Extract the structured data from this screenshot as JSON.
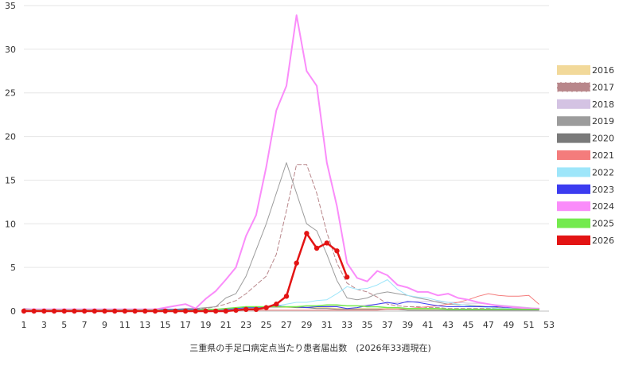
{
  "chart_data": {
    "type": "line",
    "xlabel": "三重県の手足口病定点当たり患者届出数　(2026年33週現在)",
    "ylabel": "",
    "title": "",
    "xlim": [
      1,
      53
    ],
    "ylim": [
      0,
      35
    ],
    "x_ticks": [
      1,
      3,
      5,
      7,
      9,
      11,
      13,
      15,
      17,
      19,
      21,
      23,
      25,
      27,
      29,
      31,
      33,
      35,
      37,
      39,
      41,
      43,
      45,
      47,
      49,
      51,
      53
    ],
    "y_ticks": [
      0,
      5,
      10,
      15,
      20,
      25,
      30,
      35
    ],
    "grid": true,
    "legend_position": "right",
    "series": [
      {
        "name": "2016",
        "color": "#f2d99a",
        "style": "solid",
        "width": 1,
        "values": [
          0.1,
          0.1,
          0.1,
          0.1,
          0.1,
          0.1,
          0.1,
          0.1,
          0.1,
          0.1,
          0.1,
          0.1,
          0.1,
          0.1,
          0.1,
          0.1,
          0.1,
          0.1,
          0.1,
          0.2,
          0.2,
          0.3,
          0.3,
          0.3,
          0.4,
          0.4,
          0.4,
          0.4,
          0.4,
          0.4,
          0.4,
          0.3,
          0.3,
          0.3,
          0.3,
          0.3,
          0.3,
          0.3,
          0.2,
          0.2,
          0.2,
          0.2,
          0.2,
          0.2,
          0.2,
          0.2,
          0.2,
          0.2,
          0.2,
          0.2,
          0.2,
          0.2
        ]
      },
      {
        "name": "2017",
        "color": "#b8868a",
        "style": "dashed",
        "width": 1,
        "values": [
          0.2,
          0.2,
          0.2,
          0.1,
          0.1,
          0.1,
          0.1,
          0.1,
          0.1,
          0.1,
          0.1,
          0.1,
          0.1,
          0.2,
          0.2,
          0.2,
          0.2,
          0.3,
          0.3,
          0.5,
          0.8,
          1.2,
          2.0,
          3.0,
          4.0,
          6.5,
          11.5,
          16.8,
          16.8,
          13.5,
          9.0,
          5.5,
          3.2,
          2.5,
          2.2,
          1.6,
          0.8,
          0.6,
          0.5,
          0.5,
          0.4,
          0.4,
          0.3,
          0.3,
          0.3,
          0.3,
          0.3,
          0.3,
          0.3,
          0.3,
          0.3,
          0.3
        ]
      },
      {
        "name": "2018",
        "color": "#d4c3e3",
        "style": "solid",
        "width": 1,
        "values": [
          0.1,
          0.1,
          0.1,
          0.1,
          0.1,
          0.1,
          0.1,
          0.1,
          0.1,
          0.1,
          0.1,
          0.1,
          0.1,
          0.1,
          0.1,
          0.1,
          0.1,
          0.1,
          0.2,
          0.2,
          0.2,
          0.3,
          0.3,
          0.3,
          0.4,
          0.4,
          0.5,
          0.5,
          0.5,
          0.6,
          0.6,
          0.6,
          0.6,
          0.6,
          0.7,
          0.8,
          0.9,
          1.0,
          1.0,
          1.1,
          1.1,
          1.1,
          1.0,
          1.0,
          0.9,
          0.9,
          0.8,
          0.7,
          0.6,
          0.5,
          0.4,
          0.3
        ]
      },
      {
        "name": "2019",
        "color": "#9c9c9c",
        "style": "solid",
        "width": 1,
        "values": [
          0.3,
          0.2,
          0.2,
          0.2,
          0.2,
          0.2,
          0.2,
          0.2,
          0.2,
          0.2,
          0.2,
          0.2,
          0.2,
          0.2,
          0.2,
          0.2,
          0.3,
          0.3,
          0.4,
          0.5,
          1.5,
          2.0,
          4.0,
          7.0,
          10.0,
          13.5,
          17.0,
          13.5,
          10.0,
          9.2,
          6.5,
          3.5,
          1.5,
          1.3,
          1.5,
          2.0,
          2.2,
          2.0,
          1.8,
          1.5,
          1.3,
          1.0,
          0.8,
          0.7,
          0.7,
          0.6,
          0.5,
          0.4,
          0.3,
          0.3,
          0.3,
          0.3
        ]
      },
      {
        "name": "2020",
        "color": "#7a7a7a",
        "style": "solid",
        "width": 1,
        "values": [
          0.1,
          0.1,
          0.1,
          0.1,
          0.1,
          0.1,
          0.1,
          0.1,
          0.1,
          0.1,
          0.1,
          0.1,
          0.1,
          0.1,
          0.1,
          0.1,
          0.1,
          0.1,
          0.1,
          0.1,
          0.1,
          0.2,
          0.3,
          0.4,
          0.5,
          0.6,
          0.5,
          0.4,
          0.4,
          0.3,
          0.3,
          0.2,
          0.2,
          0.2,
          0.2,
          0.2,
          0.2,
          0.2,
          0.1,
          0.1,
          0.1,
          0.1,
          0.1,
          0.1,
          0.1,
          0.1,
          0.1,
          0.1,
          0.1,
          0.1,
          0.1,
          0.1
        ]
      },
      {
        "name": "2021",
        "color": "#f47c7c",
        "style": "solid",
        "width": 1,
        "values": [
          0.1,
          0.1,
          0.1,
          0.1,
          0.1,
          0.1,
          0.1,
          0.1,
          0.1,
          0.1,
          0.1,
          0.1,
          0.1,
          0.1,
          0.1,
          0.1,
          0.1,
          0.1,
          0.1,
          0.1,
          0.1,
          0.1,
          0.1,
          0.1,
          0.1,
          0.1,
          0.1,
          0.1,
          0.1,
          0.1,
          0.1,
          0.1,
          0.1,
          0.1,
          0.1,
          0.1,
          0.2,
          0.2,
          0.3,
          0.4,
          0.5,
          0.6,
          0.8,
          1.0,
          1.3,
          1.7,
          2.0,
          1.8,
          1.7,
          1.7,
          1.8,
          0.8
        ]
      },
      {
        "name": "2022",
        "color": "#9ee6fa",
        "style": "solid",
        "width": 1,
        "values": [
          0.1,
          0.1,
          0.1,
          0.1,
          0.1,
          0.1,
          0.1,
          0.1,
          0.1,
          0.1,
          0.1,
          0.1,
          0.1,
          0.1,
          0.1,
          0.1,
          0.1,
          0.1,
          0.1,
          0.1,
          0.1,
          0.2,
          0.3,
          0.4,
          0.5,
          0.6,
          0.8,
          1.0,
          1.0,
          1.2,
          1.3,
          2.0,
          2.8,
          2.5,
          2.6,
          3.0,
          3.6,
          2.5,
          1.8,
          1.6,
          1.5,
          1.2,
          1.0,
          0.8,
          0.6,
          0.5,
          0.4,
          0.3,
          0.3,
          0.2,
          0.2,
          0.2
        ]
      },
      {
        "name": "2023",
        "color": "#3c3cf0",
        "style": "solid",
        "width": 1,
        "values": [
          0.1,
          0.1,
          0.1,
          0.1,
          0.2,
          0.2,
          0.2,
          0.2,
          0.2,
          0.2,
          0.2,
          0.2,
          0.2,
          0.2,
          0.2,
          0.2,
          0.2,
          0.2,
          0.2,
          0.2,
          0.2,
          0.3,
          0.4,
          0.4,
          0.5,
          0.6,
          0.5,
          0.5,
          0.4,
          0.5,
          0.5,
          0.5,
          0.3,
          0.4,
          0.6,
          0.8,
          1.0,
          0.8,
          1.1,
          1.0,
          0.8,
          0.6,
          0.5,
          0.5,
          0.5,
          0.5,
          0.5,
          0.5,
          0.4,
          0.4,
          0.3,
          0.3
        ]
      },
      {
        "name": "2024",
        "color": "#fa8cfa",
        "style": "solid",
        "width": 2,
        "values": [
          0.2,
          0.2,
          0.2,
          0.2,
          0.2,
          0.2,
          0.2,
          0.2,
          0.2,
          0.2,
          0.2,
          0.2,
          0.2,
          0.2,
          0.4,
          0.6,
          0.8,
          0.3,
          1.4,
          2.3,
          3.6,
          5.0,
          8.6,
          11.0,
          16.5,
          23.0,
          25.8,
          33.9,
          27.5,
          25.8,
          17.0,
          12.0,
          5.5,
          3.8,
          3.4,
          4.6,
          4.1,
          3.0,
          2.7,
          2.2,
          2.2,
          1.8,
          2.0,
          1.5,
          1.3,
          1.0,
          0.8,
          0.6,
          0.5,
          0.4,
          0.3,
          0.3
        ]
      },
      {
        "name": "2025",
        "color": "#74ea4e",
        "style": "solid",
        "width": 1.5,
        "values": [
          0.1,
          0.1,
          0.1,
          0.1,
          0.1,
          0.1,
          0.1,
          0.1,
          0.1,
          0.1,
          0.1,
          0.1,
          0.1,
          0.1,
          0.1,
          0.1,
          0.1,
          0.1,
          0.2,
          0.2,
          0.3,
          0.4,
          0.5,
          0.5,
          0.5,
          0.5,
          0.5,
          0.5,
          0.6,
          0.6,
          0.7,
          0.7,
          0.6,
          0.6,
          0.5,
          0.5,
          0.4,
          0.4,
          0.3,
          0.3,
          0.3,
          0.3,
          0.2,
          0.2,
          0.2,
          0.2,
          0.2,
          0.2,
          0.2,
          0.2,
          0.2,
          0.2
        ]
      },
      {
        "name": "2026",
        "color": "#e31414",
        "style": "solid",
        "width": 2.5,
        "markers": true,
        "values": [
          0.0,
          0.0,
          0.0,
          0.0,
          0.0,
          0.0,
          0.0,
          0.0,
          0.0,
          0.0,
          0.0,
          0.0,
          0.0,
          0.0,
          0.0,
          0.0,
          0.0,
          0.0,
          0.0,
          0.0,
          0.0,
          0.1,
          0.2,
          0.2,
          0.4,
          0.8,
          1.7,
          5.5,
          8.9,
          7.2,
          7.8,
          6.9,
          3.9
        ]
      }
    ]
  }
}
